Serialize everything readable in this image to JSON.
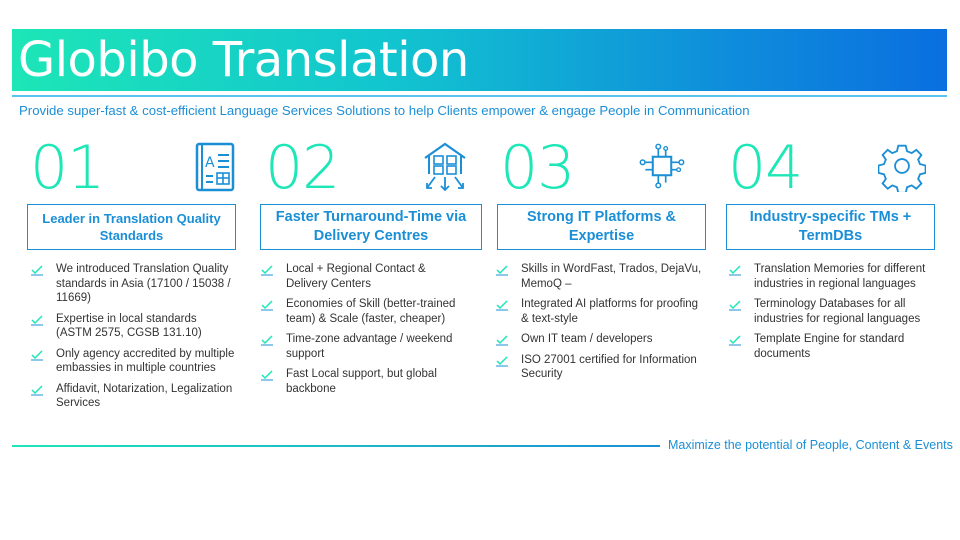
{
  "header": {
    "title": "Globibo Translation",
    "subtitle": "Provide super-fast & cost-efficient Language Services Solutions to help Clients empower & engage People in Communication"
  },
  "columns": [
    {
      "number": "01",
      "icon": "translation-dictionary-icon",
      "heading": "Leader in Translation Quality Standards",
      "items": [
        "We introduced Translation Quality standards in Asia (17100 / 15038 / 11669)",
        "Expertise in local standards (ASTM 2575, CGSB 131.10)",
        "Only agency accredited by multiple embassies in multiple countries",
        "Affidavit, Notarization, Legalization Services"
      ]
    },
    {
      "number": "02",
      "icon": "delivery-centre-icon",
      "heading": "Faster Turnaround-Time via Delivery Centres",
      "items": [
        "Local + Regional Contact & Delivery Centers",
        "Economies of Skill (better-trained team) & Scale (faster, cheaper)",
        "Time-zone advantage / weekend support",
        "Fast Local support, but global backbone"
      ]
    },
    {
      "number": "03",
      "icon": "circuit-chip-icon",
      "heading": "Strong IT Platforms & Expertise",
      "items": [
        "Skills in WordFast, Trados, DejaVu, MemoQ –",
        "Integrated AI platforms for proofing & text-style",
        "Own IT team / developers",
        "ISO 27001 certified for Information Security"
      ]
    },
    {
      "number": "04",
      "icon": "gear-icon",
      "heading": "Industry-specific TMs + TermDBs",
      "items": [
        "Translation Memories for different industries in regional languages",
        "Terminology Databases for all industries for regional languages",
        "Template Engine for standard documents"
      ]
    }
  ],
  "footer": {
    "tagline": "Maximize the potential of People, Content & Events"
  },
  "colors": {
    "accent_green": "#1de6b7",
    "accent_blue": "#1b8fd6"
  }
}
